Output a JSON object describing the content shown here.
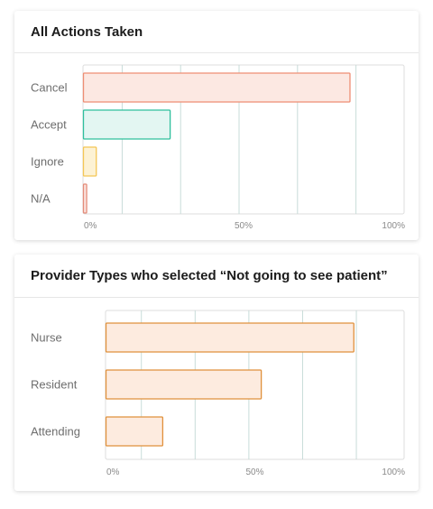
{
  "chart_data": [
    {
      "type": "bar",
      "orientation": "horizontal",
      "title": "All Actions Taken",
      "categories": [
        "Cancel",
        "Accept",
        "Ignore",
        "N/A"
      ],
      "values": [
        83,
        27,
        4,
        1
      ],
      "xlim": [
        0,
        100
      ],
      "ticks": [
        "0%",
        "50%",
        "100%"
      ],
      "grid": true,
      "colors": [
        {
          "fill": "#fce8e2",
          "stroke": "#ee8e74"
        },
        {
          "fill": "#e3f6f2",
          "stroke": "#2fbf9d"
        },
        {
          "fill": "#fdf2d4",
          "stroke": "#f4c656"
        },
        {
          "fill": "#fbe3de",
          "stroke": "#e48c7a"
        }
      ]
    },
    {
      "type": "bar",
      "orientation": "horizontal",
      "title": "Provider Types who selected “Not going to see patient”",
      "categories": [
        "Nurse",
        "Resident",
        "Attending"
      ],
      "values": [
        83,
        52,
        19
      ],
      "xlim": [
        0,
        100
      ],
      "ticks": [
        "0%",
        "50%",
        "100%"
      ],
      "grid": true,
      "colors": [
        {
          "fill": "#fdebdf",
          "stroke": "#e0913c"
        },
        {
          "fill": "#fdebdf",
          "stroke": "#e0913c"
        },
        {
          "fill": "#fdebdf",
          "stroke": "#e0913c"
        }
      ]
    }
  ]
}
